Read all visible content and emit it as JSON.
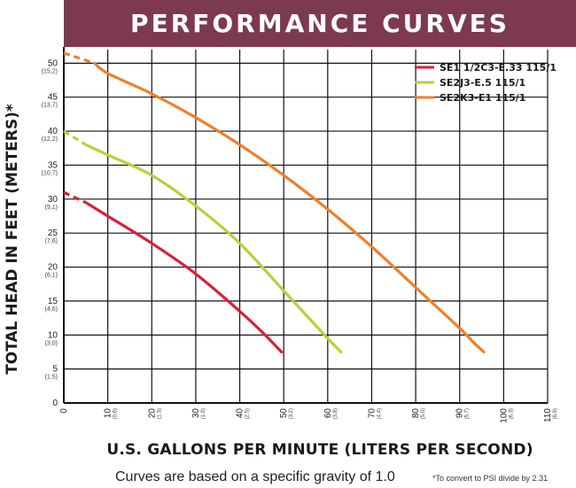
{
  "chart_data": {
    "type": "line",
    "title": "PERFORMANCE CURVES",
    "xlabel": "U.S. GALLONS PER MINUTE (LITERS PER SECOND)",
    "ylabel": "TOTAL HEAD IN FEET (METERS)*",
    "xlim": [
      0,
      110
    ],
    "ylim": [
      0,
      52
    ],
    "grid": true,
    "legend_position": "top-right",
    "x_ticks": [
      {
        "value": 0,
        "label": "0",
        "sub": ""
      },
      {
        "value": 10,
        "label": "10",
        "sub": "(0.6)"
      },
      {
        "value": 20,
        "label": "20",
        "sub": "(1.3)"
      },
      {
        "value": 30,
        "label": "30",
        "sub": "(1.9)"
      },
      {
        "value": 40,
        "label": "40",
        "sub": "(2.5)"
      },
      {
        "value": 50,
        "label": "50",
        "sub": "(3.2)"
      },
      {
        "value": 60,
        "label": "60",
        "sub": "(3.8)"
      },
      {
        "value": 70,
        "label": "70",
        "sub": "(4.4)"
      },
      {
        "value": 80,
        "label": "80",
        "sub": "(5.0)"
      },
      {
        "value": 90,
        "label": "90",
        "sub": "(5.7)"
      },
      {
        "value": 100,
        "label": "100",
        "sub": "(6.3)"
      },
      {
        "value": 110,
        "label": "110",
        "sub": "(6.9)"
      }
    ],
    "y_ticks": [
      {
        "value": 0,
        "label": "0",
        "sub": ""
      },
      {
        "value": 5,
        "label": "5",
        "sub": "(1,5)"
      },
      {
        "value": 10,
        "label": "10",
        "sub": "(3,0)"
      },
      {
        "value": 15,
        "label": "15",
        "sub": "(4,6)"
      },
      {
        "value": 20,
        "label": "20",
        "sub": "(6,1)"
      },
      {
        "value": 25,
        "label": "25",
        "sub": "(7,6)"
      },
      {
        "value": 30,
        "label": "30",
        "sub": "(9,1)"
      },
      {
        "value": 35,
        "label": "35",
        "sub": "(10,7)"
      },
      {
        "value": 40,
        "label": "40",
        "sub": "(12,2)"
      },
      {
        "value": 45,
        "label": "45",
        "sub": "(13,7)"
      },
      {
        "value": 50,
        "label": "50",
        "sub": "(15,2)"
      }
    ],
    "series": [
      {
        "name": "SE1 1/2C3-E.33 115/1",
        "color": "#d8203c",
        "dashed_until_x": 5,
        "points": [
          [
            0,
            31
          ],
          [
            5,
            29.5
          ],
          [
            10,
            27.5
          ],
          [
            20,
            23.5
          ],
          [
            30,
            19
          ],
          [
            40,
            13.5
          ],
          [
            45,
            10.5
          ],
          [
            49.5,
            7.5
          ]
        ]
      },
      {
        "name": "SE2J3-E.5 115/1",
        "color": "#b8d03a",
        "dashed_until_x": 5,
        "points": [
          [
            0,
            40
          ],
          [
            5,
            38
          ],
          [
            10,
            36.5
          ],
          [
            20,
            33.5
          ],
          [
            30,
            29
          ],
          [
            40,
            23.5
          ],
          [
            50,
            16.5
          ],
          [
            55,
            13
          ],
          [
            60,
            9.5
          ],
          [
            63,
            7.5
          ]
        ]
      },
      {
        "name": "SE2K3-E1 115/1",
        "color": "#ef7f2a",
        "dashed_until_x": 7,
        "points": [
          [
            0,
            51.5
          ],
          [
            7,
            50
          ],
          [
            10,
            48.5
          ],
          [
            20,
            45.5
          ],
          [
            30,
            42
          ],
          [
            40,
            38
          ],
          [
            50,
            33.5
          ],
          [
            60,
            28.5
          ],
          [
            70,
            23
          ],
          [
            80,
            17
          ],
          [
            90,
            11
          ],
          [
            93,
            9
          ],
          [
            95.5,
            7.5
          ]
        ]
      }
    ]
  },
  "notes": {
    "gravity": "Curves are based on a specific gravity of 1.0",
    "psi": "*To convert to PSI divide by 2.31"
  }
}
